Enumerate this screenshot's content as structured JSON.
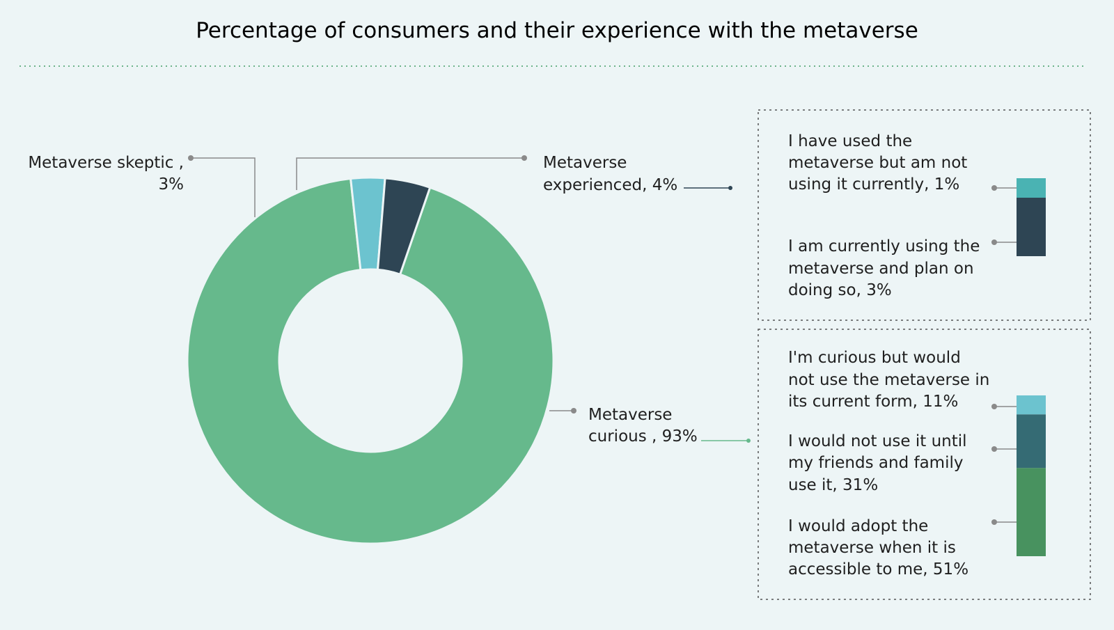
{
  "title": "Percentage of consumers and their experience with the metaverse",
  "colors": {
    "background": "#edf5f6",
    "curious": "#66b98c",
    "skeptic": "#6cc3cf",
    "experienced": "#2e4554",
    "used_not_current": "#4ab3b3",
    "currently_using": "#2e4554",
    "curious_not_current_form": "#6cc3cf",
    "until_friends": "#356b74",
    "when_accessible": "#48925f",
    "leader": "#8a8a8a",
    "border": "#555555"
  },
  "chart_data": [
    {
      "type": "pie",
      "variant": "donut",
      "title": "Percentage of consumers and their experience with the metaverse",
      "slices": [
        {
          "label": "Metaverse curious",
          "value": 93,
          "text": "Metaverse curious , 93%"
        },
        {
          "label": "Metaverse skeptic",
          "value": 3,
          "text": "Metaverse skeptic , 3%"
        },
        {
          "label": "Metaverse experienced",
          "value": 4,
          "text": "Metaverse experienced, 4%"
        }
      ]
    },
    {
      "type": "bar",
      "variant": "stacked",
      "parent": "Metaverse experienced",
      "series": [
        {
          "name": "I have used the metaverse but am not using it currently",
          "value": 1
        },
        {
          "name": "I am currently using the metaverse and plan on doing so",
          "value": 3
        }
      ]
    },
    {
      "type": "bar",
      "variant": "stacked",
      "parent": "Metaverse curious",
      "series": [
        {
          "name": "I'm curious but would not use the metaverse in its current form",
          "value": 11
        },
        {
          "name": "I would not use it until my friends and family use it",
          "value": 31
        },
        {
          "name": "I would adopt the metaverse when it is accessible to me",
          "value": 51
        }
      ]
    }
  ],
  "labels": {
    "skeptic": [
      "Metaverse skeptic ,",
      "3%"
    ],
    "experienced": [
      "Metaverse",
      "experienced, 4%"
    ],
    "curious": [
      "Metaverse",
      "curious , 93%"
    ],
    "exp_used": [
      "I have used the",
      "metaverse but am not",
      "using it currently, 1%"
    ],
    "exp_current": [
      "I am currently using the",
      "metaverse and plan on",
      "doing so, 3%"
    ],
    "cur_form": [
      "I'm curious but would",
      "not use the metaverse in",
      "its current form, 11%"
    ],
    "cur_friends": [
      "I would not use it until",
      "my friends and family",
      "use it, 31%"
    ],
    "cur_access": [
      "I would adopt the",
      "metaverse when it is",
      "accessible to me, 51%"
    ]
  }
}
